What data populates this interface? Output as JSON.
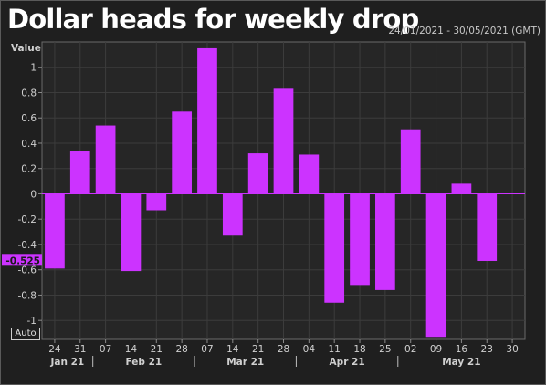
{
  "header": {
    "title": "Dollar heads for weekly drop",
    "date_range": "24/01/2021 - 30/05/2021 (GMT)"
  },
  "controls": {
    "auto_label": "Auto"
  },
  "colors": {
    "bar": "#cc33ff",
    "background": "#262626",
    "grid": "#3c3c3c",
    "text": "#d0d0d0"
  },
  "chart_data": {
    "type": "bar",
    "ylabel": "Value",
    "ylim": [
      -1.15,
      1.2
    ],
    "yticks": [
      1,
      0.8,
      0.6,
      0.4,
      0.2,
      0,
      -0.2,
      -0.4,
      -0.6,
      -0.8,
      -1
    ],
    "ytick_labels": [
      "1",
      "0.8",
      "0.6",
      "0.4",
      "0.2",
      "0",
      "-0.2",
      "-0.4",
      "-0.6",
      "-0.8",
      "-1"
    ],
    "grid": true,
    "categories": [
      "24",
      "31",
      "07",
      "14",
      "21",
      "28",
      "07",
      "14",
      "21",
      "28",
      "04",
      "11",
      "18",
      "25",
      "02",
      "09",
      "16",
      "23",
      "30"
    ],
    "months": [
      {
        "label": "Jan 21",
        "start": 0,
        "end": 1
      },
      {
        "label": "Feb 21",
        "start": 2,
        "end": 5
      },
      {
        "label": "Mar 21",
        "start": 6,
        "end": 9
      },
      {
        "label": "Apr 21",
        "start": 10,
        "end": 13
      },
      {
        "label": "May 21",
        "start": 14,
        "end": 18
      }
    ],
    "values": [
      -0.59,
      0.34,
      0.54,
      -0.61,
      -0.13,
      0.65,
      1.15,
      -0.33,
      0.32,
      0.83,
      0.31,
      -0.86,
      -0.72,
      -0.76,
      0.51,
      -1.13,
      0.08,
      -0.53,
      0
    ],
    "current_value": -0.525,
    "current_value_label": "-0.525"
  }
}
